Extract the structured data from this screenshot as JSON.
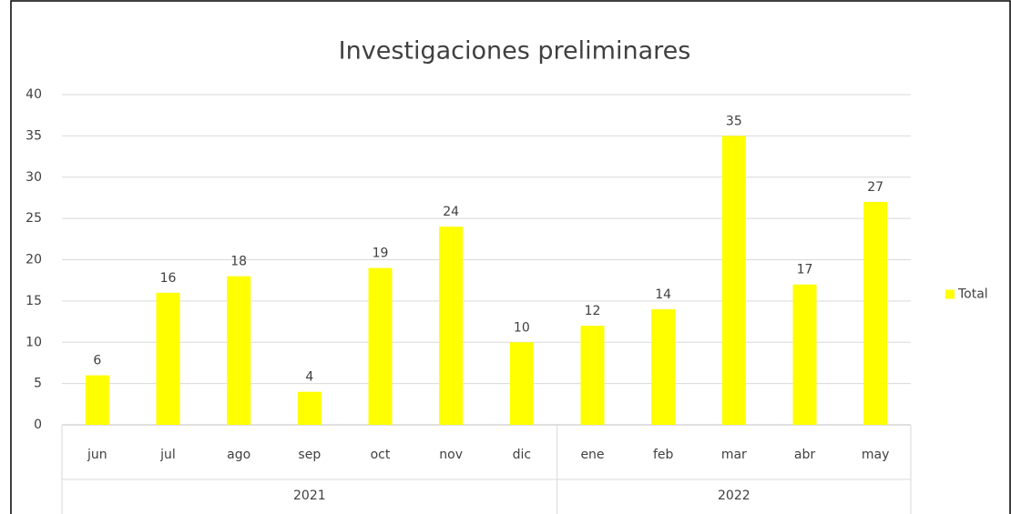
{
  "chart_data": {
    "type": "bar",
    "title": "Investigaciones preliminares",
    "category_groups": [
      {
        "label": "2021",
        "categories": [
          "jun",
          "jul",
          "ago",
          "sep",
          "oct",
          "nov",
          "dic"
        ]
      },
      {
        "label": "2022",
        "categories": [
          "ene",
          "feb",
          "mar",
          "abr",
          "may"
        ]
      }
    ],
    "series": [
      {
        "name": "Total",
        "color": "#ffff00",
        "values": [
          6,
          16,
          18,
          4,
          19,
          24,
          10,
          12,
          14,
          35,
          17,
          27
        ]
      }
    ],
    "ylim": [
      0,
      40
    ],
    "yticks": [
      0,
      5,
      10,
      15,
      20,
      25,
      30,
      35,
      40
    ],
    "grid": true,
    "legend": "right",
    "data_labels": true
  }
}
